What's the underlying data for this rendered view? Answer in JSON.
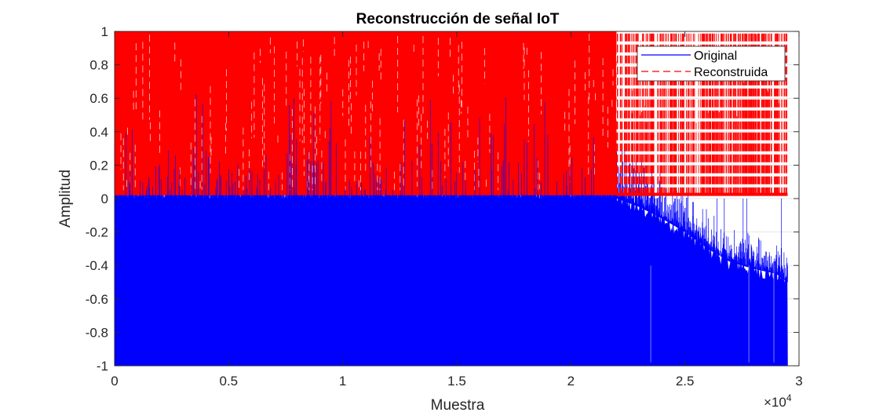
{
  "chart_data": {
    "type": "line",
    "title": "Reconstrucción de señal IoT",
    "xlabel": "Muestra",
    "ylabel": "Amplitud",
    "xlim": [
      0,
      30000
    ],
    "ylim": [
      -1,
      1
    ],
    "x_tick_values": [
      0,
      5000,
      10000,
      15000,
      20000,
      25000,
      30000
    ],
    "x_tick_labels": [
      "0",
      "0.5",
      "1",
      "1.5",
      "2",
      "2.5",
      "3"
    ],
    "x_exponent_label": "×10",
    "x_exponent_power": "4",
    "y_tick_values": [
      -1,
      -0.8,
      -0.6,
      -0.4,
      -0.2,
      0,
      0.2,
      0.4,
      0.6,
      0.8,
      1
    ],
    "y_tick_labels": [
      "-1",
      "-0.8",
      "-0.6",
      "-0.4",
      "-0.2",
      "0",
      "0.2",
      "0.4",
      "0.6",
      "0.8",
      "1"
    ],
    "grid": true,
    "legend_position": "top-right",
    "series": [
      {
        "name": "Original",
        "color": "#0000ff",
        "style": "solid",
        "num_samples": 29500,
        "envelope_x": [
          0,
          22000,
          23000,
          24000,
          25000,
          26000,
          27000,
          28000,
          29000,
          29500
        ],
        "envelope_min": [
          -1,
          -1,
          -1,
          -1,
          -1,
          -1,
          -1,
          -1,
          -1,
          -1
        ],
        "envelope_max": [
          0.7,
          0.7,
          0.05,
          0.02,
          0.01,
          0.0,
          0.0,
          0.0,
          0.0,
          0.0
        ],
        "upper_edge_x": [
          22000,
          23000,
          24000,
          25000,
          26000,
          27000,
          28000,
          29000,
          29500
        ],
        "upper_edge_y": [
          0.0,
          -0.05,
          -0.12,
          -0.2,
          -0.3,
          -0.38,
          -0.42,
          -0.45,
          -0.5
        ]
      },
      {
        "name": "Reconstruida",
        "color": "#ff0000",
        "style": "dashed",
        "num_samples": 29500,
        "envelope_x": [
          0,
          22000,
          29500
        ],
        "envelope_min": [
          0.02,
          0.02,
          0.02
        ],
        "envelope_max": [
          1,
          1,
          1
        ]
      }
    ]
  }
}
